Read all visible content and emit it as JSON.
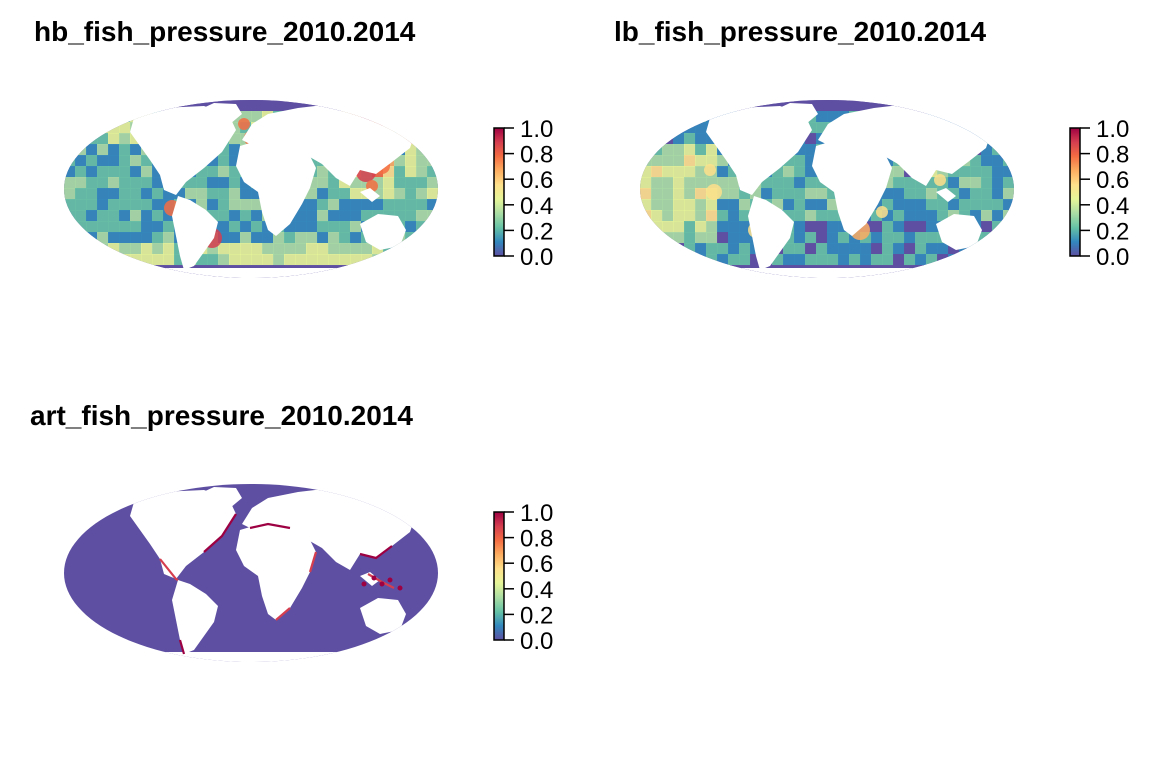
{
  "panels": [
    {
      "title": "hb_fish_pressure_2010.2014",
      "legend_ticks": [
        "1.0",
        "0.8",
        "0.6",
        "0.4",
        "0.2",
        "0.0"
      ],
      "pattern": "high_bycatch"
    },
    {
      "title": "lb_fish_pressure_2010.2014",
      "legend_ticks": [
        "1.0",
        "0.8",
        "0.6",
        "0.4",
        "0.2",
        "0.0"
      ],
      "pattern": "low_bycatch"
    },
    {
      "title": "art_fish_pressure_2010.2014",
      "legend_ticks": [
        "1.0",
        "0.8",
        "0.6",
        "0.4",
        "0.2",
        "0.0"
      ],
      "pattern": "artisanal"
    }
  ],
  "colorbar": {
    "min": 0.0,
    "max": 1.0,
    "palette": [
      "#5e4fa2",
      "#3288bd",
      "#66c2a5",
      "#abdda4",
      "#e6f598",
      "#fee08b",
      "#fdae61",
      "#f46d43",
      "#d53e4f",
      "#9e0142"
    ]
  },
  "ocean_color": "#5e4fa2",
  "land_color": "#ffffff"
}
